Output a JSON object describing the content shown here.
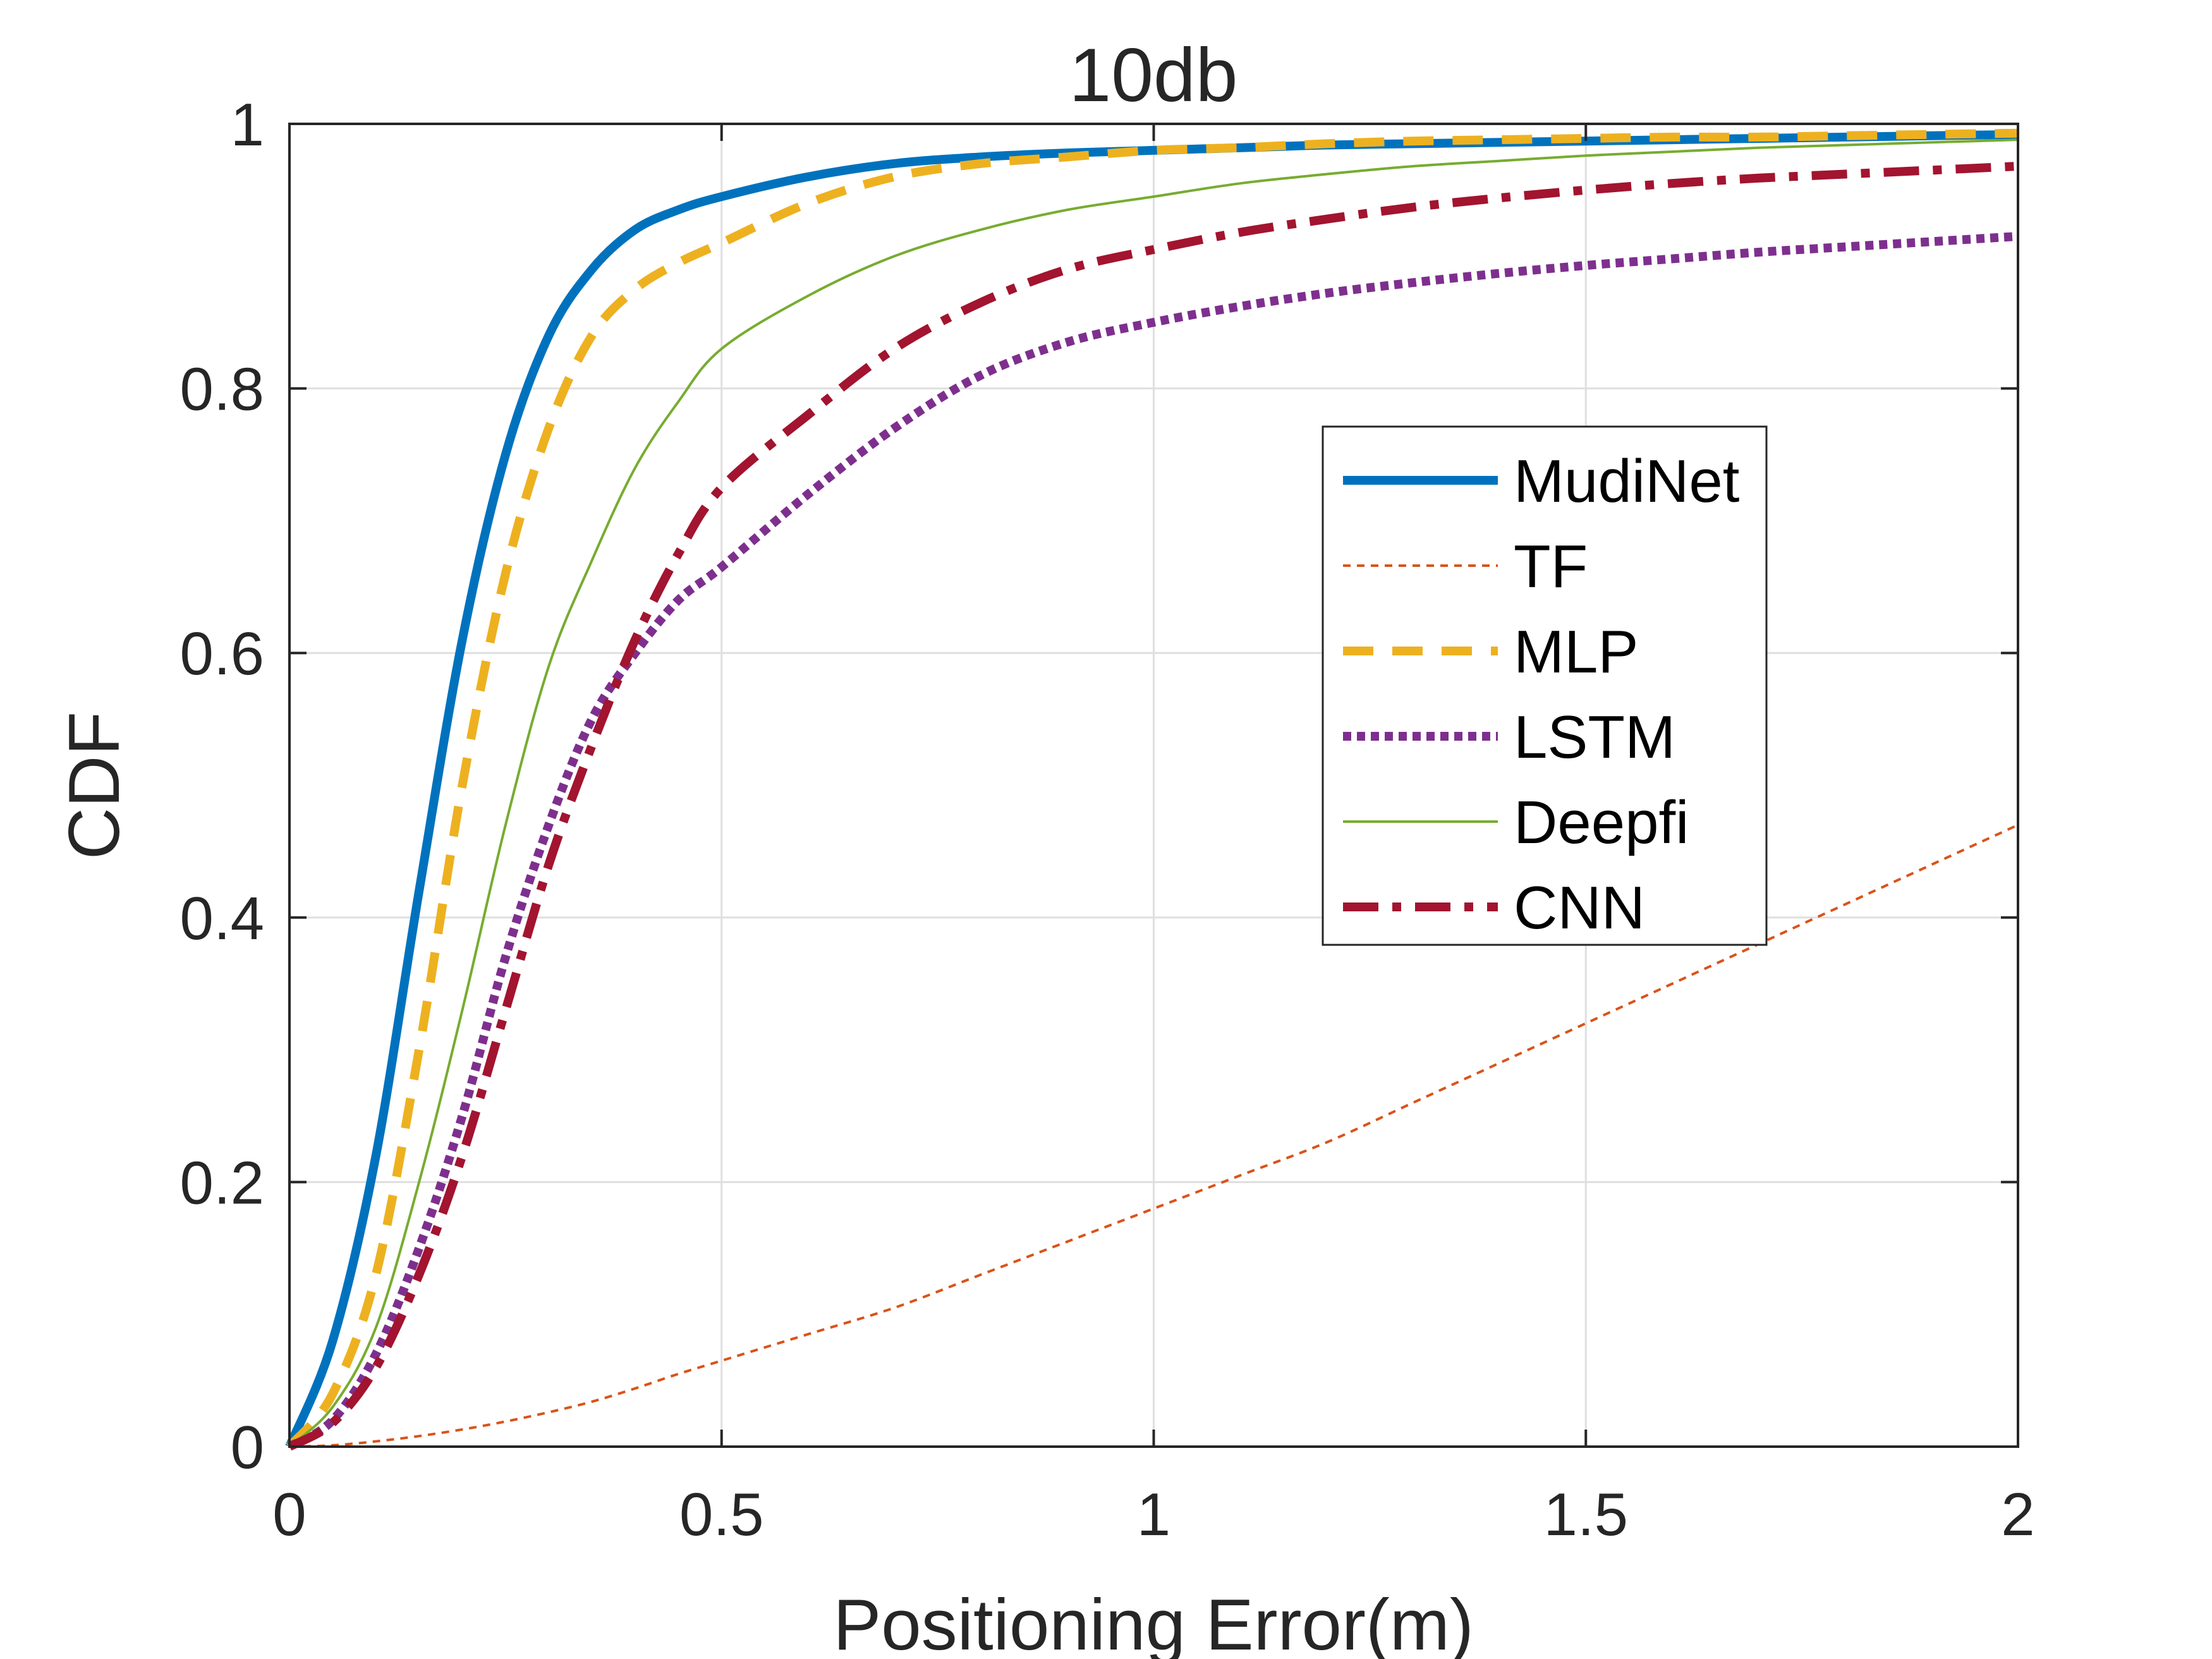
{
  "chart_data": {
    "type": "line",
    "title": "10db",
    "xlabel": "Positioning Error(m)",
    "ylabel": "CDF",
    "xlim": [
      0,
      2
    ],
    "ylim": [
      0,
      1
    ],
    "xticks": [
      0,
      0.5,
      1,
      1.5,
      2
    ],
    "xtick_labels": [
      "0",
      "0.5",
      "1",
      "1.5",
      "2"
    ],
    "yticks": [
      0,
      0.2,
      0.4,
      0.6,
      0.8,
      1
    ],
    "ytick_labels": [
      "0",
      "0.2",
      "0.4",
      "0.6",
      "0.8",
      "1"
    ],
    "grid": true,
    "legend_position": "center-right",
    "x": [
      0,
      0.05,
      0.1,
      0.15,
      0.2,
      0.25,
      0.3,
      0.35,
      0.4,
      0.45,
      0.5,
      0.6,
      0.7,
      0.8,
      0.9,
      1.0,
      1.1,
      1.2,
      1.3,
      1.4,
      1.5,
      1.6,
      1.7,
      1.8,
      1.9,
      2.0
    ],
    "series": [
      {
        "name": "MudiNet",
        "color": "#0072BD",
        "dash": "solid",
        "width": "thick",
        "values": [
          0,
          0.08,
          0.22,
          0.42,
          0.61,
          0.75,
          0.84,
          0.89,
          0.92,
          0.935,
          0.945,
          0.96,
          0.97,
          0.975,
          0.978,
          0.98,
          0.982,
          0.984,
          0.985,
          0.986,
          0.987,
          0.988,
          0.989,
          0.99,
          0.991,
          0.992
        ]
      },
      {
        "name": "TF",
        "color": "#D95319",
        "dash": "dotted",
        "width": "thin",
        "values": [
          0,
          0.001,
          0.004,
          0.008,
          0.013,
          0.019,
          0.026,
          0.034,
          0.044,
          0.055,
          0.065,
          0.085,
          0.105,
          0.13,
          0.155,
          0.18,
          0.205,
          0.23,
          0.26,
          0.29,
          0.32,
          0.35,
          0.38,
          0.41,
          0.44,
          0.47
        ]
      },
      {
        "name": "MLP",
        "color": "#EDB120",
        "dash": "dashed",
        "width": "thick",
        "values": [
          0,
          0.04,
          0.13,
          0.3,
          0.5,
          0.66,
          0.77,
          0.84,
          0.875,
          0.895,
          0.91,
          0.94,
          0.96,
          0.97,
          0.975,
          0.98,
          0.982,
          0.985,
          0.987,
          0.988,
          0.989,
          0.99,
          0.99,
          0.991,
          0.992,
          0.993
        ]
      },
      {
        "name": "LSTM",
        "color": "#7E2F8E",
        "dash": "densedot",
        "width": "thick",
        "values": [
          0,
          0.02,
          0.07,
          0.15,
          0.25,
          0.37,
          0.47,
          0.55,
          0.6,
          0.64,
          0.665,
          0.72,
          0.77,
          0.81,
          0.835,
          0.85,
          0.862,
          0.872,
          0.88,
          0.887,
          0.893,
          0.898,
          0.903,
          0.907,
          0.911,
          0.915
        ]
      },
      {
        "name": "Deepfi",
        "color": "#77AC30",
        "dash": "solid",
        "width": "thin",
        "values": [
          0,
          0.03,
          0.09,
          0.2,
          0.33,
          0.47,
          0.59,
          0.67,
          0.74,
          0.79,
          0.83,
          0.87,
          0.9,
          0.92,
          0.935,
          0.945,
          0.955,
          0.962,
          0.968,
          0.972,
          0.976,
          0.979,
          0.982,
          0.984,
          0.986,
          0.988
        ]
      },
      {
        "name": "CNN",
        "color": "#A2142F",
        "dash": "dashdot",
        "width": "thick",
        "values": [
          0,
          0.018,
          0.06,
          0.13,
          0.22,
          0.33,
          0.44,
          0.53,
          0.61,
          0.675,
          0.725,
          0.78,
          0.83,
          0.865,
          0.89,
          0.905,
          0.918,
          0.928,
          0.937,
          0.944,
          0.95,
          0.955,
          0.959,
          0.962,
          0.965,
          0.968
        ]
      }
    ]
  }
}
